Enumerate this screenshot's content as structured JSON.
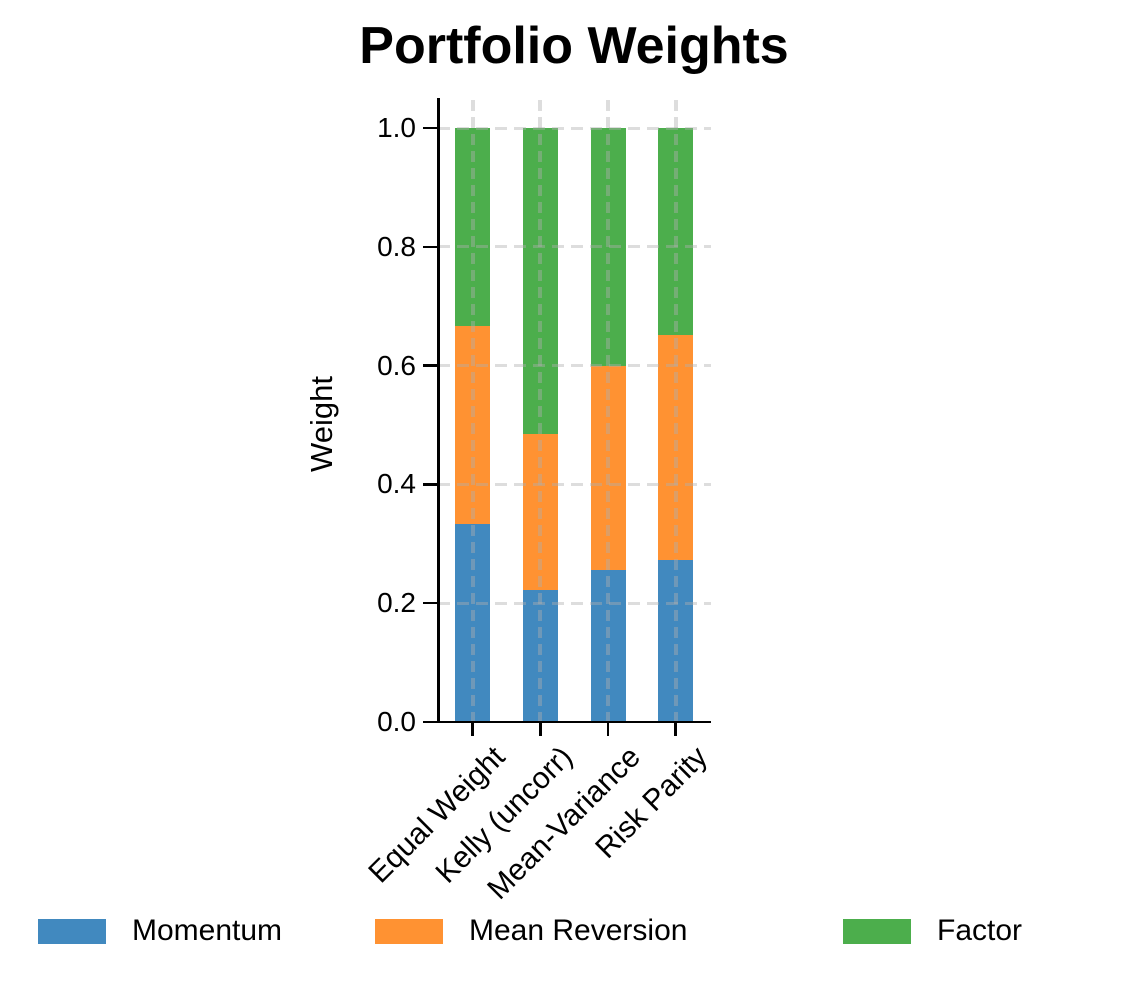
{
  "chart_data": {
    "type": "bar",
    "stacked": true,
    "title": "Portfolio Weights",
    "ylabel": "Weight",
    "xlabel": "",
    "categories": [
      "Equal Weight",
      "Kelly (uncorr)",
      "Mean-Variance",
      "Risk Parity"
    ],
    "series": [
      {
        "name": "Momentum",
        "color": "#4189BF",
        "values": [
          0.333,
          0.222,
          0.256,
          0.272
        ]
      },
      {
        "name": "Mean Reversion",
        "color": "#FF9232",
        "values": [
          0.333,
          0.263,
          0.344,
          0.379
        ]
      },
      {
        "name": "Factor",
        "color": "#4CAE4C",
        "values": [
          0.334,
          0.515,
          0.4,
          0.349
        ]
      }
    ],
    "ytick_labels": [
      "0.0",
      "0.2",
      "0.4",
      "0.6",
      "0.8",
      "1.0"
    ],
    "ytick_values": [
      0.0,
      0.2,
      0.4,
      0.6,
      0.8,
      1.0
    ],
    "ylim": [
      0,
      1.05
    ],
    "grid": "dashed light-gray gridlines on both axes, drawn over bars",
    "legend_position": "bottom",
    "colors": {
      "momentum_blue": "#4189BF",
      "mean_reversion_orange": "#FF9232",
      "factor_green": "#4CAE4C",
      "axis_black": "#000000",
      "gridline_gray": "#d9d9d9",
      "background": "#ffffff"
    }
  }
}
